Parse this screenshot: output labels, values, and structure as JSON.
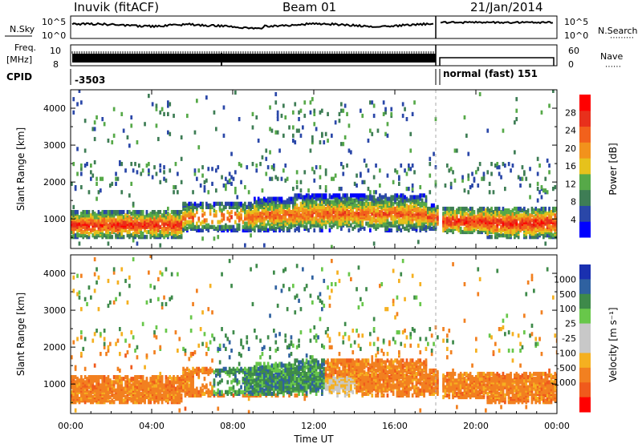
{
  "header": {
    "station": "Inuvik (fitACF)",
    "beam": "Beam 01",
    "date": "21/Jan/2014"
  },
  "strip_labels": {
    "nsky": "N.Sky",
    "nsearch": "N.Search",
    "freq": "Freq.",
    "freq_unit": "[MHz]",
    "nave": "Nave",
    "cpid": "CPID",
    "dots_left": "⋯⋯",
    "dots_right": "⋯⋯⋯"
  },
  "strip_ticks": {
    "noise_left_hi": "10^5",
    "noise_left_lo": "10^0",
    "noise_right_hi": "10^5",
    "noise_right_lo": "10^0",
    "freq_left_hi": "10",
    "freq_left_lo": "8",
    "nave_right_hi": "60",
    "nave_right_lo": "0"
  },
  "cpid": {
    "segments": [
      {
        "label": "-3503",
        "start_hour": 0,
        "end_hour": 18.1
      },
      {
        "label": "normal (fast) 151",
        "start_hour": 18.1,
        "end_hour": 24
      }
    ]
  },
  "colors": {
    "power": [
      "#0000ff",
      "#2a47a8",
      "#3e7d55",
      "#56a948",
      "#e6c21c",
      "#f2921c",
      "#f2611c",
      "#e8301c",
      "#ff0000"
    ],
    "velocity": [
      "#1a30b0",
      "#2f61a0",
      "#3e8a4a",
      "#68c74a",
      "#c8c8c8",
      "#c8c8c8",
      "#f5b020",
      "#f28020",
      "#f05a1c",
      "#ff0000"
    ]
  },
  "chart_data": [
    {
      "type": "heatmap",
      "name": "power",
      "title": "",
      "xlabel": "",
      "ylabel": "Slant Range [km]",
      "xlim": [
        0,
        24
      ],
      "ylim": [
        200,
        4500
      ],
      "x_ticks": [
        0,
        4,
        8,
        12,
        16,
        20,
        24
      ],
      "y_ticks": [
        1000,
        2000,
        3000,
        4000
      ],
      "y_tick_labels": [
        "1000",
        "2000",
        "3000",
        "4000"
      ],
      "colorbar": {
        "label": "Power [dB]",
        "range": [
          0,
          32
        ],
        "ticks": [
          4,
          8,
          12,
          16,
          20,
          24,
          28
        ],
        "tick_labels": [
          "4",
          "8",
          "12",
          "16",
          "20",
          "24",
          "28"
        ]
      },
      "data_gap_hours": [
        18.1,
        18.3
      ],
      "dominant_echo_band_km": [
        500,
        1600
      ]
    },
    {
      "type": "heatmap",
      "name": "velocity",
      "title": "",
      "xlabel": "Time UT",
      "ylabel": "Slant Range [km]",
      "xlim": [
        0,
        24
      ],
      "ylim": [
        200,
        4500
      ],
      "x_ticks": [
        0,
        4,
        8,
        12,
        16,
        20,
        24
      ],
      "x_tick_labels": [
        "00:00",
        "04:00",
        "08:00",
        "12:00",
        "16:00",
        "20:00",
        "00:00"
      ],
      "y_ticks": [
        1000,
        2000,
        3000,
        4000
      ],
      "y_tick_labels": [
        "1000",
        "2000",
        "3000",
        "4000"
      ],
      "colorbar": {
        "label": "Velocity [m s⁻¹]",
        "tick_labels": [
          "1000",
          "500",
          "100",
          "25",
          "-25",
          "-100",
          "-500",
          "-1000"
        ]
      },
      "data_gap_hours": [
        18.1,
        18.3
      ],
      "dominant_echo_band_km": [
        500,
        1600
      ]
    }
  ]
}
